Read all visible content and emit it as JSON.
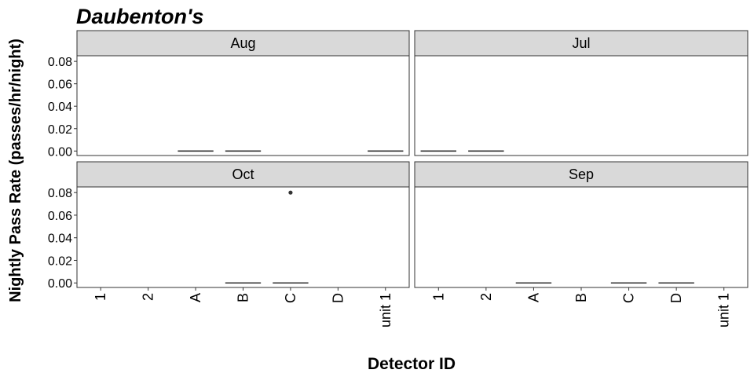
{
  "chart_data": {
    "type": "boxplot",
    "title": "Daubenton's",
    "xlabel": "Detector ID",
    "ylabel": "Nightly Pass Rate (passes/hr/night)",
    "categories": [
      "1",
      "2",
      "A",
      "B",
      "C",
      "D",
      "unit 1"
    ],
    "ylim": [
      -0.004,
      0.085
    ],
    "yticks": [
      0.0,
      0.02,
      0.04,
      0.06,
      0.08
    ],
    "ytick_labels": [
      "0.00",
      "0.02",
      "0.04",
      "0.06",
      "0.08"
    ],
    "grid": false,
    "facets": [
      {
        "label": "Aug",
        "boxes": [
          {
            "category": "A",
            "median": 0.0
          },
          {
            "category": "B",
            "median": 0.0
          },
          {
            "category": "unit 1",
            "median": 0.0
          }
        ],
        "outliers": []
      },
      {
        "label": "Jul",
        "boxes": [
          {
            "category": "1",
            "median": 0.0
          },
          {
            "category": "2",
            "median": 0.0
          }
        ],
        "outliers": []
      },
      {
        "label": "Oct",
        "boxes": [
          {
            "category": "B",
            "median": 0.0
          },
          {
            "category": "C",
            "median": 0.0
          }
        ],
        "outliers": [
          {
            "category": "C",
            "value": 0.08
          }
        ]
      },
      {
        "label": "Sep",
        "boxes": [
          {
            "category": "A",
            "median": 0.0
          },
          {
            "category": "C",
            "median": 0.0
          },
          {
            "category": "D",
            "median": 0.0
          }
        ],
        "outliers": []
      }
    ]
  }
}
